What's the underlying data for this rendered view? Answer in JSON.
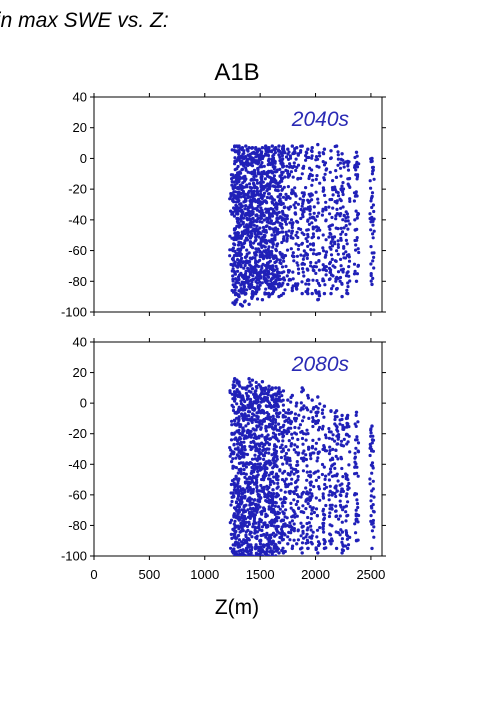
{
  "page": {
    "heading": "in max SWE vs. Z:"
  },
  "chart_data": {
    "type": "scatter",
    "title": "A1B",
    "xlabel": "Z(m)",
    "ylabel": "",
    "xlim": [
      0,
      2600
    ],
    "ylim": [
      -100,
      40
    ],
    "xticks": [
      0,
      500,
      1000,
      1500,
      2000,
      2500
    ],
    "yticks": [
      40,
      20,
      0,
      -20,
      -40,
      -60,
      -80,
      -100
    ],
    "grid": false,
    "marker_color": "#2020b8",
    "panels": [
      {
        "name": "2040s",
        "label_color": "#2a2ab4",
        "columns": [
          {
            "x": 1270,
            "ymin": -95,
            "ymax": 8
          },
          {
            "x": 1290,
            "ymin": -92,
            "ymax": 8
          },
          {
            "x": 1310,
            "ymin": -90,
            "ymax": 8
          },
          {
            "x": 1340,
            "ymin": -96,
            "ymax": 7
          },
          {
            "x": 1370,
            "ymin": -88,
            "ymax": 8
          },
          {
            "x": 1400,
            "ymin": -95,
            "ymax": 7
          },
          {
            "x": 1430,
            "ymin": -90,
            "ymax": 7
          },
          {
            "x": 1460,
            "ymin": -88,
            "ymax": 7
          },
          {
            "x": 1490,
            "ymin": -85,
            "ymax": 6
          },
          {
            "x": 1520,
            "ymin": -92,
            "ymax": 7
          },
          {
            "x": 1550,
            "ymin": -88,
            "ymax": 8
          },
          {
            "x": 1580,
            "ymin": -90,
            "ymax": 7
          },
          {
            "x": 1610,
            "ymin": -88,
            "ymax": 8
          },
          {
            "x": 1640,
            "ymin": -85,
            "ymax": 7
          },
          {
            "x": 1670,
            "ymin": -90,
            "ymax": 8
          },
          {
            "x": 1710,
            "ymin": -88,
            "ymax": 8
          },
          {
            "x": 1750,
            "ymin": -82,
            "ymax": 6
          },
          {
            "x": 1790,
            "ymin": -86,
            "ymax": 8
          },
          {
            "x": 1830,
            "ymin": -85,
            "ymax": 7
          },
          {
            "x": 1880,
            "ymin": -88,
            "ymax": 8
          },
          {
            "x": 1930,
            "ymin": -88,
            "ymax": 6
          },
          {
            "x": 1970,
            "ymin": -88,
            "ymax": 7
          },
          {
            "x": 2020,
            "ymin": -92,
            "ymax": 9
          },
          {
            "x": 2080,
            "ymin": -88,
            "ymax": 6
          },
          {
            "x": 2140,
            "ymin": -88,
            "ymax": 5
          },
          {
            "x": 2190,
            "ymin": -85,
            "ymax": 8
          },
          {
            "x": 2240,
            "ymin": -90,
            "ymax": 3
          },
          {
            "x": 2290,
            "ymin": -88,
            "ymax": -2
          },
          {
            "x": 2370,
            "ymin": -80,
            "ymax": 4
          },
          {
            "x": 2510,
            "ymin": -82,
            "ymax": 0
          }
        ]
      },
      {
        "name": "2080s",
        "label_color": "#2a2ab4",
        "columns": [
          {
            "x": 1270,
            "ymin": -100,
            "ymax": 16
          },
          {
            "x": 1290,
            "ymin": -100,
            "ymax": 15
          },
          {
            "x": 1310,
            "ymin": -100,
            "ymax": 12
          },
          {
            "x": 1340,
            "ymin": -100,
            "ymax": 10
          },
          {
            "x": 1370,
            "ymin": -100,
            "ymax": 10
          },
          {
            "x": 1400,
            "ymin": -100,
            "ymax": 16
          },
          {
            "x": 1430,
            "ymin": -100,
            "ymax": 15
          },
          {
            "x": 1460,
            "ymin": -100,
            "ymax": 8
          },
          {
            "x": 1490,
            "ymin": -100,
            "ymax": 12
          },
          {
            "x": 1520,
            "ymin": -100,
            "ymax": 14
          },
          {
            "x": 1550,
            "ymin": -98,
            "ymax": 10
          },
          {
            "x": 1580,
            "ymin": -100,
            "ymax": 11
          },
          {
            "x": 1610,
            "ymin": -98,
            "ymax": 10
          },
          {
            "x": 1640,
            "ymin": -100,
            "ymax": 10
          },
          {
            "x": 1670,
            "ymin": -98,
            "ymax": 10
          },
          {
            "x": 1710,
            "ymin": -98,
            "ymax": 8
          },
          {
            "x": 1750,
            "ymin": -92,
            "ymax": 2
          },
          {
            "x": 1790,
            "ymin": -95,
            "ymax": 5
          },
          {
            "x": 1830,
            "ymin": -92,
            "ymax": 0
          },
          {
            "x": 1880,
            "ymin": -98,
            "ymax": 10
          },
          {
            "x": 1930,
            "ymin": -95,
            "ymax": 5
          },
          {
            "x": 1970,
            "ymin": -92,
            "ymax": 2
          },
          {
            "x": 2020,
            "ymin": -98,
            "ymax": 4
          },
          {
            "x": 2080,
            "ymin": -95,
            "ymax": -2
          },
          {
            "x": 2140,
            "ymin": -92,
            "ymax": -5
          },
          {
            "x": 2190,
            "ymin": -95,
            "ymax": -5
          },
          {
            "x": 2240,
            "ymin": -98,
            "ymax": -8
          },
          {
            "x": 2290,
            "ymin": -95,
            "ymax": -8
          },
          {
            "x": 2370,
            "ymin": -90,
            "ymax": -6
          },
          {
            "x": 2510,
            "ymin": -95,
            "ymax": -15
          }
        ]
      }
    ]
  }
}
